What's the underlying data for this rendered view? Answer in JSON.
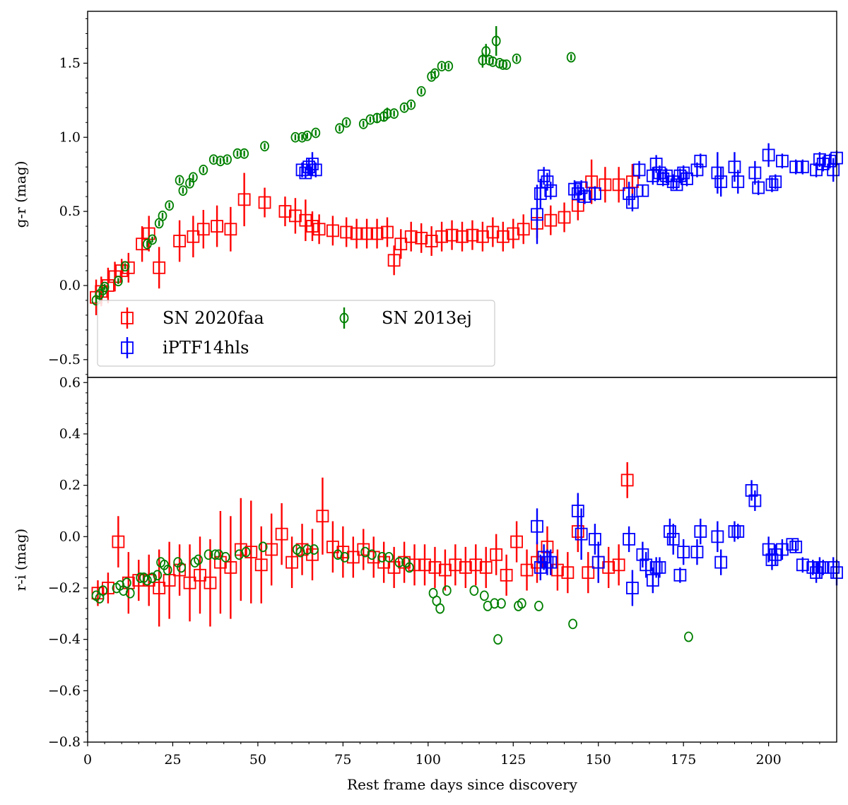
{
  "chart_data": [
    {
      "type": "scatter",
      "panel": "top",
      "ylabel": "g-r (mag)",
      "xlim": [
        0,
        220
      ],
      "ylim": [
        -0.62,
        1.85
      ],
      "yticks": [
        -0.5,
        0.0,
        0.5,
        1.0,
        1.5
      ],
      "ytick_labels": [
        "−0.5",
        "0.0",
        "0.5",
        "1.0",
        "1.5"
      ],
      "legend": {
        "placement": "lower-left",
        "columns": 2
      },
      "series": [
        {
          "name": "SN 2020faa",
          "color": "#ff0000",
          "marker": "square",
          "x": [
            2.5,
            4,
            6,
            8,
            10,
            12,
            16,
            18,
            21,
            27,
            31,
            34,
            38,
            42,
            46,
            52,
            58,
            61,
            64,
            66,
            68,
            72,
            76,
            79,
            82,
            85,
            88,
            90,
            92,
            95,
            98,
            101,
            104,
            107,
            110,
            113,
            116,
            119,
            122,
            125,
            128,
            132,
            136,
            140,
            144,
            148,
            152,
            156,
            160
          ],
          "y": [
            -0.08,
            -0.04,
            0.0,
            0.06,
            0.1,
            0.12,
            0.28,
            0.35,
            0.12,
            0.3,
            0.33,
            0.38,
            0.4,
            0.38,
            0.58,
            0.56,
            0.5,
            0.47,
            0.44,
            0.4,
            0.38,
            0.37,
            0.36,
            0.35,
            0.35,
            0.35,
            0.36,
            0.17,
            0.28,
            0.33,
            0.32,
            0.3,
            0.33,
            0.34,
            0.33,
            0.34,
            0.33,
            0.36,
            0.33,
            0.35,
            0.38,
            0.42,
            0.44,
            0.46,
            0.54,
            0.7,
            0.68,
            0.68,
            0.7
          ],
          "yerr": [
            0.12,
            0.1,
            0.12,
            0.1,
            0.08,
            0.1,
            0.12,
            0.12,
            0.14,
            0.14,
            0.14,
            0.13,
            0.14,
            0.15,
            0.18,
            0.1,
            0.1,
            0.12,
            0.14,
            0.1,
            0.1,
            0.1,
            0.1,
            0.1,
            0.1,
            0.1,
            0.1,
            0.1,
            0.1,
            0.1,
            0.1,
            0.1,
            0.1,
            0.1,
            0.1,
            0.1,
            0.1,
            0.1,
            0.1,
            0.1,
            0.1,
            0.1,
            0.1,
            0.1,
            0.1,
            0.15,
            0.12,
            0.12,
            0.12
          ]
        },
        {
          "name": "iPTF14hls",
          "color": "#0000ff",
          "marker": "square",
          "x": [
            63,
            64,
            65,
            66,
            67,
            132,
            133,
            134,
            135,
            136,
            143,
            144,
            145,
            146,
            149,
            159,
            160,
            162,
            163,
            166,
            167,
            168,
            169,
            170,
            172,
            173,
            174,
            175,
            176,
            179,
            180,
            185,
            186,
            190,
            191,
            196,
            197,
            200,
            201,
            202,
            204,
            208,
            210,
            214,
            215,
            216,
            218,
            219,
            220
          ],
          "y": [
            0.78,
            0.76,
            0.8,
            0.82,
            0.78,
            0.48,
            0.62,
            0.74,
            0.7,
            0.64,
            0.65,
            0.62,
            0.66,
            0.6,
            0.62,
            0.62,
            0.56,
            0.78,
            0.64,
            0.74,
            0.82,
            0.76,
            0.72,
            0.74,
            0.7,
            0.68,
            0.74,
            0.76,
            0.72,
            0.78,
            0.84,
            0.76,
            0.7,
            0.8,
            0.7,
            0.76,
            0.66,
            0.88,
            0.68,
            0.7,
            0.84,
            0.8,
            0.8,
            0.78,
            0.85,
            0.82,
            0.84,
            0.78,
            0.86
          ],
          "yerr": [
            0.05,
            0.04,
            0.06,
            0.08,
            0.05,
            0.2,
            0.1,
            0.06,
            0.06,
            0.06,
            0.06,
            0.06,
            0.05,
            0.05,
            0.05,
            0.08,
            0.06,
            0.06,
            0.04,
            0.06,
            0.06,
            0.05,
            0.05,
            0.05,
            0.05,
            0.04,
            0.05,
            0.05,
            0.05,
            0.05,
            0.05,
            0.14,
            0.1,
            0.1,
            0.08,
            0.08,
            0.05,
            0.08,
            0.05,
            0.05,
            0.05,
            0.05,
            0.05,
            0.05,
            0.05,
            0.05,
            0.05,
            0.08,
            0.05
          ]
        },
        {
          "name": "SN 2013ej",
          "color": "#008000",
          "marker": "circle",
          "x": [
            2.5,
            3.5,
            4.5,
            5,
            9,
            11,
            17.5,
            19,
            21,
            22,
            24,
            27,
            28,
            30,
            31,
            34,
            37,
            39,
            41,
            44,
            46,
            52,
            61,
            63,
            64.5,
            67,
            74,
            76,
            81,
            83,
            85,
            87,
            88,
            90,
            93,
            95,
            98,
            101,
            102,
            104,
            106,
            116,
            117,
            118,
            119,
            120,
            121,
            122,
            123,
            126,
            142
          ],
          "y": [
            -0.1,
            -0.06,
            -0.03,
            -0.01,
            0.03,
            0.13,
            0.28,
            0.31,
            0.42,
            0.47,
            0.54,
            0.71,
            0.64,
            0.69,
            0.73,
            0.78,
            0.85,
            0.84,
            0.85,
            0.89,
            0.89,
            0.94,
            1.0,
            1.0,
            1.01,
            1.03,
            1.06,
            1.1,
            1.09,
            1.12,
            1.13,
            1.14,
            1.16,
            1.16,
            1.2,
            1.22,
            1.31,
            1.41,
            1.43,
            1.48,
            1.48,
            1.52,
            1.58,
            1.52,
            1.51,
            1.65,
            1.5,
            1.49,
            1.49,
            1.53,
            1.54
          ],
          "yerr": [
            0.02,
            0.02,
            0.02,
            0.02,
            0.02,
            0.02,
            0.02,
            0.02,
            0.02,
            0.02,
            0.02,
            0.02,
            0.02,
            0.02,
            0.02,
            0.02,
            0.02,
            0.02,
            0.02,
            0.02,
            0.02,
            0.02,
            0.02,
            0.02,
            0.02,
            0.02,
            0.02,
            0.02,
            0.02,
            0.02,
            0.03,
            0.03,
            0.04,
            0.02,
            0.02,
            0.02,
            0.02,
            0.02,
            0.02,
            0.02,
            0.02,
            0.05,
            0.05,
            0.02,
            0.02,
            0.1,
            0.02,
            0.02,
            0.02,
            0.02,
            0.02
          ]
        }
      ]
    },
    {
      "type": "scatter",
      "panel": "bottom",
      "xlabel": "Rest frame days since discovery",
      "ylabel": "r-i (mag)",
      "xlim": [
        0,
        220
      ],
      "ylim": [
        -0.8,
        0.62
      ],
      "xticks": [
        0,
        25,
        50,
        75,
        100,
        125,
        150,
        175,
        200
      ],
      "xtick_labels": [
        "0",
        "25",
        "50",
        "75",
        "100",
        "125",
        "150",
        "175",
        "200"
      ],
      "yticks": [
        -0.8,
        -0.6,
        -0.4,
        -0.2,
        0.0,
        0.2,
        0.4,
        0.6
      ],
      "ytick_labels": [
        "−0.8",
        "−0.6",
        "−0.4",
        "−0.2",
        "0.0",
        "0.2",
        "0.4",
        "0.6"
      ],
      "series": [
        {
          "name": "SN 2020faa",
          "color": "#ff0000",
          "marker": "square",
          "x": [
            3,
            6,
            9,
            12,
            15,
            18,
            21,
            24,
            27,
            30,
            33,
            36,
            39,
            42,
            45,
            48,
            51,
            54,
            57,
            60,
            63,
            66,
            69,
            72,
            75,
            78,
            81,
            84,
            87,
            90,
            93,
            96,
            99,
            102,
            105,
            108,
            111,
            114,
            117,
            120,
            123,
            126,
            129,
            132,
            135,
            138,
            141,
            144,
            147,
            150,
            153,
            156,
            158.5
          ],
          "y": [
            -0.22,
            -0.2,
            -0.02,
            -0.18,
            -0.17,
            -0.17,
            -0.2,
            -0.17,
            -0.13,
            -0.18,
            -0.15,
            -0.18,
            -0.1,
            -0.12,
            -0.05,
            -0.06,
            -0.11,
            -0.05,
            0.01,
            -0.1,
            -0.05,
            -0.07,
            0.08,
            -0.04,
            -0.06,
            -0.08,
            -0.05,
            -0.08,
            -0.1,
            -0.12,
            -0.1,
            -0.11,
            -0.11,
            -0.12,
            -0.13,
            -0.11,
            -0.12,
            -0.11,
            -0.12,
            -0.07,
            -0.15,
            -0.02,
            -0.13,
            -0.1,
            -0.04,
            -0.13,
            -0.14,
            0.02,
            -0.14,
            -0.1,
            -0.12,
            -0.11,
            0.22
          ],
          "yerr": [
            0.05,
            0.06,
            0.1,
            0.12,
            0.08,
            0.1,
            0.15,
            0.15,
            0.1,
            0.15,
            0.15,
            0.17,
            0.2,
            0.2,
            0.2,
            0.2,
            0.15,
            0.14,
            0.12,
            0.1,
            0.1,
            0.1,
            0.15,
            0.1,
            0.1,
            0.08,
            0.08,
            0.08,
            0.08,
            0.08,
            0.08,
            0.08,
            0.08,
            0.08,
            0.08,
            0.08,
            0.08,
            0.08,
            0.08,
            0.08,
            0.08,
            0.08,
            0.08,
            0.08,
            0.08,
            0.08,
            0.08,
            0.08,
            0.08,
            0.08,
            0.08,
            0.08,
            0.07
          ]
        },
        {
          "name": "iPTF14hls",
          "color": "#0000ff",
          "marker": "square",
          "x": [
            132,
            133,
            134,
            135,
            136,
            144,
            145,
            149,
            150,
            159,
            160,
            163,
            164,
            166,
            167,
            168,
            171,
            172,
            174,
            175,
            179,
            180,
            185,
            186,
            190,
            191,
            195,
            196,
            200,
            201,
            202,
            204,
            207,
            208,
            210,
            213,
            214,
            215,
            216,
            219,
            220
          ],
          "y": [
            0.04,
            -0.12,
            -0.08,
            -0.1,
            -0.1,
            0.1,
            0.01,
            -0.01,
            -0.1,
            -0.01,
            -0.2,
            -0.07,
            -0.11,
            -0.17,
            -0.12,
            -0.12,
            0.02,
            -0.01,
            -0.15,
            -0.06,
            -0.06,
            0.02,
            0.0,
            -0.1,
            0.02,
            0.02,
            0.18,
            0.14,
            -0.05,
            -0.09,
            -0.07,
            -0.05,
            -0.03,
            -0.04,
            -0.11,
            -0.12,
            -0.14,
            -0.12,
            -0.12,
            -0.12,
            -0.14
          ],
          "yerr": [
            0.07,
            0.05,
            0.05,
            0.05,
            0.05,
            0.07,
            0.1,
            0.06,
            0.08,
            0.05,
            0.07,
            0.05,
            0.05,
            0.05,
            0.04,
            0.04,
            0.05,
            0.06,
            0.03,
            0.05,
            0.05,
            0.05,
            0.06,
            0.05,
            0.04,
            0.03,
            0.04,
            0.04,
            0.05,
            0.04,
            0.04,
            0.04,
            0.02,
            0.02,
            0.03,
            0.03,
            0.04,
            0.04,
            0.03,
            0.04,
            0.05
          ]
        },
        {
          "name": "SN 2013ej",
          "color": "#008000",
          "marker": "circle",
          "x": [
            2.5,
            3.5,
            4.5,
            8.5,
            9.5,
            10.5,
            11.5,
            12.5,
            15.5,
            16.5,
            17.5,
            19,
            20.5,
            21.5,
            22.5,
            23.5,
            26.5,
            27.5,
            31.5,
            32.5,
            35.5,
            37.5,
            38.5,
            40.5,
            44.5,
            46.5,
            51.5,
            61.5,
            62.5,
            64.5,
            66.5,
            73.5,
            75.5,
            81.5,
            83.5,
            86.5,
            88.5,
            91.5,
            93.5,
            94.5,
            101.5,
            102.5,
            103.5,
            105.5,
            113.5,
            116.5,
            117.5,
            119.5,
            120.5,
            121.5,
            126.5,
            127.5,
            132.5,
            142.5,
            176.5
          ],
          "y": [
            -0.23,
            -0.24,
            -0.21,
            -0.2,
            -0.19,
            -0.21,
            -0.18,
            -0.22,
            -0.16,
            -0.16,
            -0.17,
            -0.16,
            -0.15,
            -0.1,
            -0.11,
            -0.13,
            -0.1,
            -0.12,
            -0.1,
            -0.09,
            -0.07,
            -0.07,
            -0.07,
            -0.08,
            -0.07,
            -0.06,
            -0.04,
            -0.05,
            -0.06,
            -0.05,
            -0.05,
            -0.07,
            -0.08,
            -0.06,
            -0.07,
            -0.08,
            -0.08,
            -0.1,
            -0.1,
            -0.12,
            -0.22,
            -0.25,
            -0.28,
            -0.21,
            -0.21,
            -0.23,
            -0.27,
            -0.26,
            -0.4,
            -0.26,
            -0.27,
            -0.26,
            -0.27,
            -0.34,
            -0.39
          ]
        }
      ]
    }
  ]
}
